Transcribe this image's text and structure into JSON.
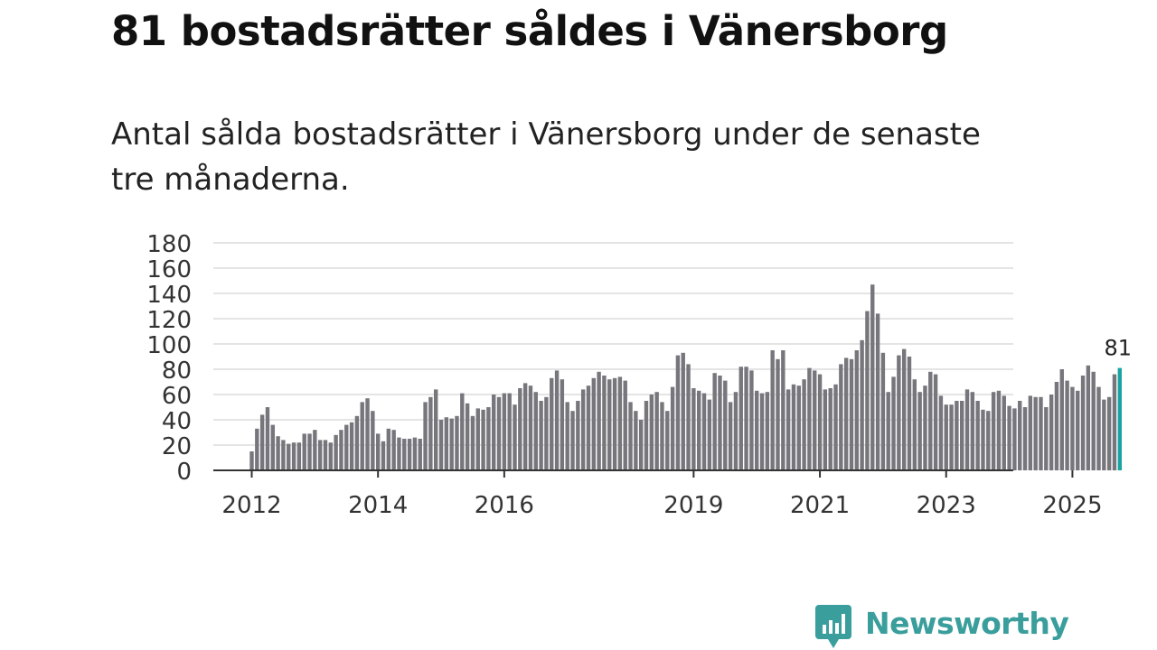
{
  "header": {
    "title": "81 bostadsrätter såldes i Vänersborg",
    "subtitle": "Antal sålda bostadsrätter i Vänersborg under de senaste tre månaderna."
  },
  "branding": {
    "logo_text": "Newsworthy",
    "logo_icon": "bar-chart-speech-bubble-icon",
    "logo_color": "#3a9e9c"
  },
  "colors": {
    "bar": "#76767c",
    "highlight": "#1aa3a3",
    "grid": "#dcdcdc",
    "axis": "#333333",
    "text": "#333333"
  },
  "chart_data": {
    "type": "bar",
    "title": "81 bostadsrätter såldes i Vänersborg",
    "subtitle": "Antal sålda bostadsrätter i Vänersborg under de senaste tre månaderna.",
    "xlabel": "",
    "ylabel": "",
    "ylim": [
      0,
      180
    ],
    "y_ticks": [
      "0",
      "20",
      "40",
      "60",
      "80",
      "100",
      "120",
      "140",
      "160",
      "180"
    ],
    "x_tick_labels": [
      {
        "label": "2012",
        "year": 2012
      },
      {
        "label": "2014",
        "year": 2014
      },
      {
        "label": "2016",
        "year": 2016
      },
      {
        "label": "2019",
        "year": 2019
      },
      {
        "label": "2021",
        "year": 2021
      },
      {
        "label": "2023",
        "year": 2023
      },
      {
        "label": "2025",
        "year": 2025
      }
    ],
    "start": {
      "year": 2012,
      "month": 1
    },
    "grid": true,
    "highlight_last": true,
    "last_value_label": "81",
    "values": [
      15,
      33,
      44,
      50,
      36,
      27,
      24,
      21,
      22,
      22,
      29,
      29,
      32,
      24,
      24,
      22,
      28,
      32,
      36,
      38,
      43,
      54,
      57,
      47,
      29,
      23,
      33,
      32,
      26,
      25,
      25,
      26,
      25,
      54,
      58,
      64,
      40,
      42,
      41,
      43,
      61,
      53,
      43,
      49,
      48,
      50,
      60,
      58,
      61,
      61,
      52,
      65,
      69,
      67,
      62,
      55,
      58,
      73,
      79,
      72,
      54,
      47,
      55,
      64,
      67,
      73,
      78,
      75,
      72,
      73,
      74,
      71,
      54,
      47,
      40,
      55,
      60,
      62,
      54,
      47,
      66,
      91,
      93,
      84,
      65,
      63,
      61,
      56,
      77,
      75,
      71,
      54,
      62,
      82,
      82,
      79,
      63,
      61,
      62,
      95,
      88,
      95,
      64,
      68,
      67,
      72,
      81,
      79,
      76,
      64,
      65,
      68,
      84,
      89,
      88,
      95,
      103,
      126,
      147,
      124,
      93,
      62,
      74,
      91,
      96,
      90,
      72,
      62,
      67,
      78,
      76,
      59,
      52,
      52,
      55,
      55,
      64,
      62,
      55,
      48,
      47,
      62,
      63,
      59,
      51,
      49,
      55,
      50,
      59,
      58,
      58,
      50,
      60,
      70,
      80,
      71,
      66,
      63,
      75,
      83,
      78,
      66,
      56,
      58,
      76,
      81
    ]
  }
}
